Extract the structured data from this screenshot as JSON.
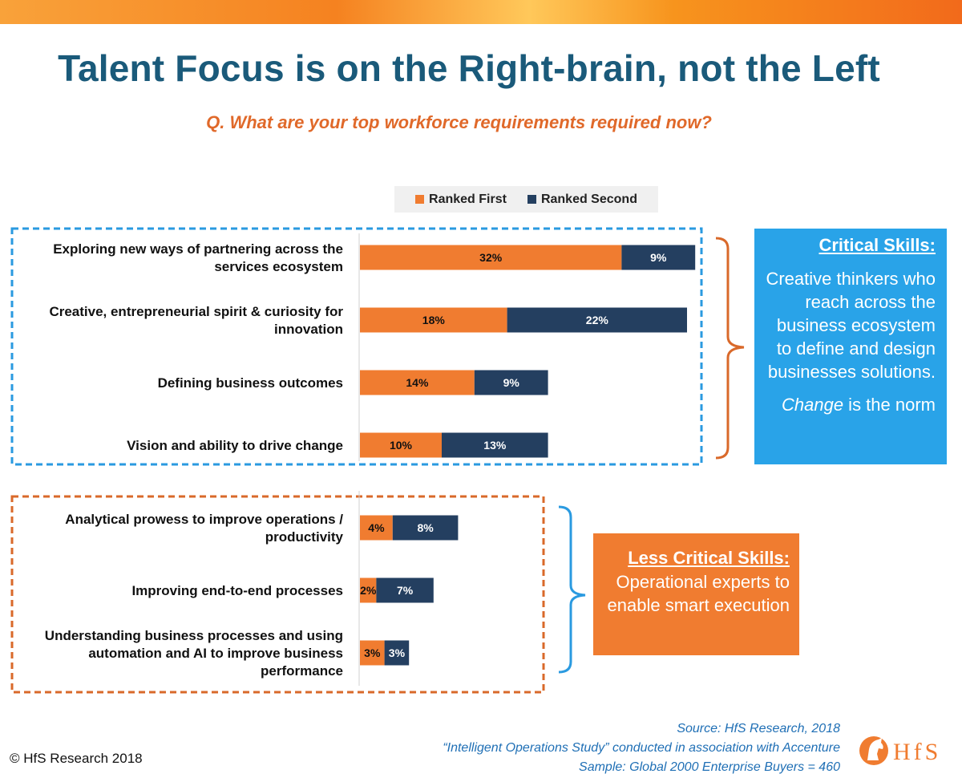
{
  "header": {
    "title": "Talent Focus is on the Right-brain, not the Left",
    "subtitle": "Q. What are your top workforce requirements required now?"
  },
  "colors": {
    "ranked_first": "#f07c30",
    "ranked_second": "#243f60",
    "critical_box": "#29a3e8",
    "less_critical_box": "#f07c30",
    "critical_frame": "#2a9ae0",
    "less_critical_frame": "#d9692a"
  },
  "chart_data": {
    "type": "bar",
    "orientation": "horizontal",
    "stacked": true,
    "categories": [
      "Exploring new ways of partnering across the services ecosystem",
      "Creative, entrepreneurial spirit & curiosity for innovation",
      "Defining business outcomes",
      "Vision and ability to drive change",
      "Analytical prowess to improve operations / productivity",
      "Improving end-to-end processes",
      "Understanding business processes and using automation and AI to improve business performance"
    ],
    "category_lines": [
      "Exploring new ways of partnering across the\nservices ecosystem",
      "Creative, entrepreneurial spirit & curiosity for\ninnovation",
      "Defining business outcomes",
      "Vision and ability to drive change",
      "Analytical prowess to improve operations /\nproductivity",
      "Improving end-to-end processes",
      "Understanding business processes and using\nautomation and AI to improve business\nperformance"
    ],
    "series": [
      {
        "name": "Ranked First",
        "values": [
          32,
          18,
          14,
          10,
          4,
          2,
          3
        ]
      },
      {
        "name": "Ranked Second",
        "values": [
          9,
          22,
          9,
          13,
          8,
          7,
          3
        ]
      }
    ],
    "unit": "%",
    "legend_position": "top",
    "grid": false
  },
  "critical": {
    "title": "Critical Skills:",
    "body": "Creative thinkers who reach across the business ecosystem to define and design businesses solutions.",
    "footer_em": "Change",
    "footer_rest": " is the norm"
  },
  "less_critical": {
    "title": "Less Critical Skills:",
    "body": "Operational experts to enable smart execution"
  },
  "source": {
    "line1": "Source: HfS Research, 2018",
    "line2": "“Intelligent Operations Study” conducted in association with Accenture",
    "line3": "Sample: Global 2000 Enterprise Buyers = 460"
  },
  "copyright": "© HfS Research 2018",
  "logo": {
    "text": "HfS",
    "icon": "horse-head-icon"
  }
}
